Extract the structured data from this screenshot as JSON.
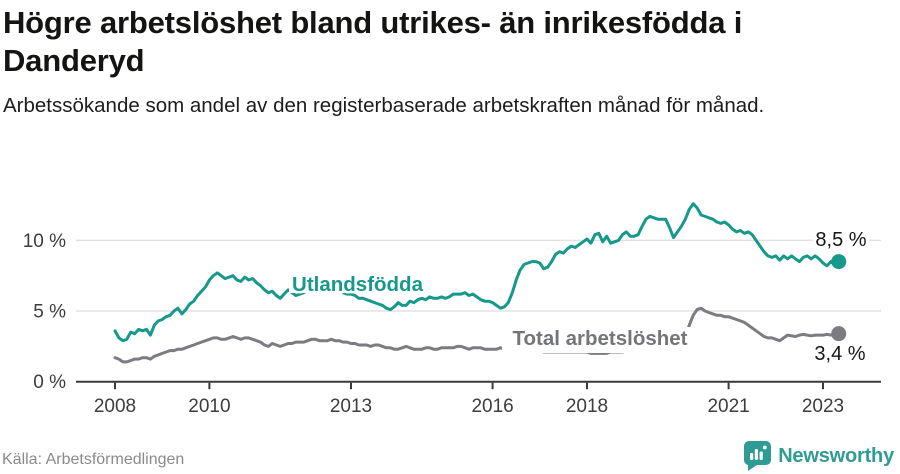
{
  "header": {
    "title": "Högre arbetslöshet bland utrikes- än inrikesfödda i Danderyd",
    "subtitle": "Arbetssökande som andel av den registerbaserade arbetskraften månad för månad."
  },
  "footer": {
    "source": "Källa: Arbetsförmedlingen",
    "brand": "Newsworthy",
    "brand_color": "#2f9c93"
  },
  "chart_data": {
    "type": "line",
    "title": "Högre arbetslöshet bland utrikes- än inrikesfödda i Danderyd",
    "subtitle": "Arbetssökande som andel av den registerbaserade arbetskraften månad för månad.",
    "x_unit": "month",
    "x_start": "2008-01",
    "x_end": "2023-05",
    "ylim": [
      0,
      13.5
    ],
    "grid": "horizontal",
    "yticks": [
      {
        "label": "0 %",
        "value": 0
      },
      {
        "label": "5 %",
        "value": 5
      },
      {
        "label": "10 %",
        "value": 10
      }
    ],
    "xticks": [
      "2008",
      "2010",
      "2013",
      "2016",
      "2018",
      "2021",
      "2023"
    ],
    "series": [
      {
        "name": "Total arbetslöshet",
        "color": "#7b7b81",
        "label_color": "#74747c",
        "end_label": "3,4 %",
        "values": [
          1.7,
          1.6,
          1.4,
          1.4,
          1.5,
          1.6,
          1.6,
          1.7,
          1.7,
          1.6,
          1.8,
          1.9,
          2.0,
          2.1,
          2.2,
          2.2,
          2.3,
          2.3,
          2.4,
          2.5,
          2.6,
          2.7,
          2.8,
          2.9,
          3.0,
          3.1,
          3.1,
          3.0,
          3.0,
          3.1,
          3.2,
          3.1,
          3.0,
          3.1,
          3.1,
          3.0,
          2.9,
          2.8,
          2.6,
          2.5,
          2.7,
          2.6,
          2.5,
          2.6,
          2.7,
          2.7,
          2.8,
          2.8,
          2.8,
          2.9,
          3.0,
          3.0,
          2.9,
          2.9,
          2.9,
          3.0,
          2.9,
          2.9,
          2.8,
          2.8,
          2.7,
          2.7,
          2.6,
          2.6,
          2.6,
          2.5,
          2.6,
          2.6,
          2.5,
          2.4,
          2.4,
          2.3,
          2.3,
          2.4,
          2.5,
          2.4,
          2.3,
          2.3,
          2.3,
          2.4,
          2.4,
          2.3,
          2.3,
          2.4,
          2.4,
          2.4,
          2.4,
          2.5,
          2.5,
          2.4,
          2.3,
          2.4,
          2.4,
          2.4,
          2.3,
          2.3,
          2.3,
          2.3,
          2.4,
          2.3,
          2.3,
          2.3,
          2.2,
          2.2,
          2.2,
          2.2,
          2.2,
          2.2,
          2.2,
          2.1,
          2.1,
          2.1,
          2.1,
          2.1,
          2.1,
          2.1,
          2.1,
          2.1,
          2.1,
          2.1,
          2.1,
          2.0,
          2.0,
          2.0,
          2.0,
          2.0,
          2.1,
          2.1,
          2.1,
          2.1,
          2.2,
          2.2,
          2.2,
          2.2,
          2.2,
          2.2,
          2.2,
          2.2,
          2.3,
          2.3,
          2.3,
          2.4,
          2.4,
          2.5,
          2.6,
          3.2,
          4.0,
          4.7,
          5.1,
          5.2,
          5.0,
          4.9,
          4.8,
          4.7,
          4.7,
          4.6,
          4.6,
          4.5,
          4.4,
          4.3,
          4.2,
          4.0,
          3.8,
          3.6,
          3.4,
          3.2,
          3.1,
          3.1,
          3.0,
          2.9,
          3.1,
          3.3,
          3.25,
          3.2,
          3.3,
          3.35,
          3.3,
          3.25,
          3.3,
          3.3,
          3.3,
          3.35,
          3.3,
          3.35,
          3.4
        ]
      },
      {
        "name": "Utlandsfödda",
        "color": "#16988a",
        "label_color": "#16988a",
        "end_label": "8,5 %",
        "values": [
          3.6,
          3.1,
          2.9,
          3.0,
          3.5,
          3.4,
          3.7,
          3.6,
          3.7,
          3.3,
          4.0,
          4.3,
          4.4,
          4.6,
          4.7,
          5.0,
          5.2,
          4.8,
          5.1,
          5.5,
          5.7,
          6.1,
          6.4,
          6.7,
          7.2,
          7.5,
          7.7,
          7.5,
          7.3,
          7.4,
          7.5,
          7.2,
          7.1,
          7.4,
          7.2,
          7.3,
          7.0,
          6.8,
          6.5,
          6.3,
          6.4,
          6.1,
          5.9,
          6.2,
          6.5,
          6.3,
          6.1,
          6.2,
          6.3,
          6.5,
          6.4,
          6.6,
          6.5,
          6.7,
          6.6,
          6.8,
          6.6,
          6.5,
          6.3,
          6.2,
          6.2,
          6.1,
          5.9,
          5.9,
          5.8,
          5.7,
          5.6,
          5.5,
          5.4,
          5.2,
          5.1,
          5.3,
          5.6,
          5.4,
          5.4,
          5.7,
          5.6,
          5.8,
          5.9,
          5.8,
          6.0,
          5.9,
          5.9,
          6.0,
          5.9,
          6.0,
          6.2,
          6.2,
          6.2,
          6.3,
          6.1,
          6.2,
          6.0,
          5.8,
          5.7,
          5.7,
          5.6,
          5.4,
          5.2,
          5.3,
          5.6,
          6.3,
          7.2,
          7.9,
          8.3,
          8.4,
          8.5,
          8.5,
          8.4,
          8.0,
          8.1,
          8.5,
          9.0,
          9.2,
          9.1,
          9.4,
          9.6,
          9.5,
          9.7,
          9.9,
          10.1,
          9.8,
          10.4,
          10.5,
          9.9,
          10.3,
          9.8,
          9.9,
          10.0,
          10.4,
          10.6,
          10.3,
          10.3,
          10.4,
          11.0,
          11.5,
          11.7,
          11.6,
          11.5,
          11.5,
          11.5,
          10.9,
          10.2,
          10.6,
          11.0,
          11.5,
          12.2,
          12.6,
          12.3,
          11.8,
          11.7,
          11.6,
          11.5,
          11.3,
          11.2,
          11.3,
          11.1,
          10.8,
          10.6,
          10.7,
          10.5,
          10.6,
          10.4,
          10.0,
          9.6,
          9.2,
          8.9,
          8.8,
          8.9,
          8.6,
          8.9,
          8.7,
          8.9,
          8.7,
          8.5,
          8.8,
          8.9,
          8.7,
          8.9,
          8.7,
          8.4,
          8.2,
          8.5,
          8.3,
          8.5
        ]
      }
    ]
  }
}
